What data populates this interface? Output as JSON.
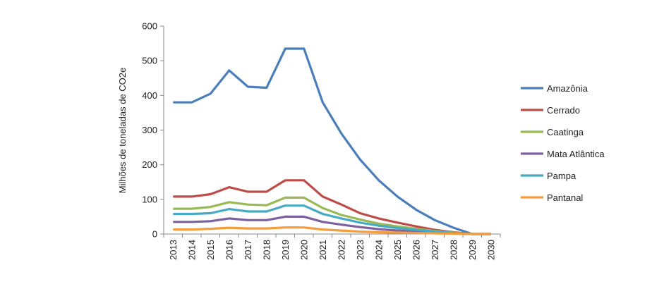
{
  "chart_data": {
    "type": "line",
    "title": "",
    "xlabel": "",
    "ylabel": "Milhões de toneladas de CO2e",
    "ylim": [
      0,
      600
    ],
    "yticks": [
      "0",
      "100",
      "200",
      "300",
      "400",
      "500",
      "600"
    ],
    "ytick_values": [
      0,
      100,
      200,
      300,
      400,
      500,
      600
    ],
    "categories": [
      "2013",
      "2014",
      "2015",
      "2016",
      "2017",
      "2018",
      "2019",
      "2020",
      "2021",
      "2022",
      "2023",
      "2024",
      "2025",
      "2026",
      "2027",
      "2028",
      "2029",
      "2030"
    ],
    "legend_position": "right",
    "grid": false,
    "series": [
      {
        "name": "Amazônia",
        "color": "#4a7ebb",
        "values": [
          380,
          380,
          405,
          472,
          425,
          422,
          535,
          535,
          380,
          290,
          215,
          155,
          108,
          70,
          40,
          18,
          0,
          0
        ]
      },
      {
        "name": "Cerrado",
        "color": "#be4b48",
        "values": [
          108,
          108,
          115,
          135,
          122,
          122,
          155,
          155,
          108,
          85,
          60,
          45,
          33,
          22,
          12,
          5,
          0,
          0
        ]
      },
      {
        "name": "Caatinga",
        "color": "#98b954",
        "values": [
          73,
          73,
          78,
          92,
          85,
          83,
          105,
          105,
          75,
          55,
          42,
          30,
          22,
          15,
          9,
          4,
          0,
          0
        ]
      },
      {
        "name": "Mata Atlântica",
        "color": "#7d60a0",
        "values": [
          35,
          35,
          37,
          45,
          40,
          40,
          50,
          50,
          35,
          27,
          20,
          14,
          10,
          7,
          4,
          2,
          0,
          0
        ]
      },
      {
        "name": "Pampa",
        "color": "#46aac5",
        "values": [
          58,
          58,
          60,
          72,
          65,
          65,
          82,
          82,
          58,
          45,
          33,
          24,
          17,
          12,
          7,
          3,
          0,
          0
        ]
      },
      {
        "name": "Pantanal",
        "color": "#f59d3d",
        "values": [
          13,
          13,
          15,
          18,
          16,
          16,
          19,
          19,
          13,
          10,
          7,
          5,
          4,
          3,
          2,
          1,
          0,
          0
        ]
      }
    ]
  }
}
